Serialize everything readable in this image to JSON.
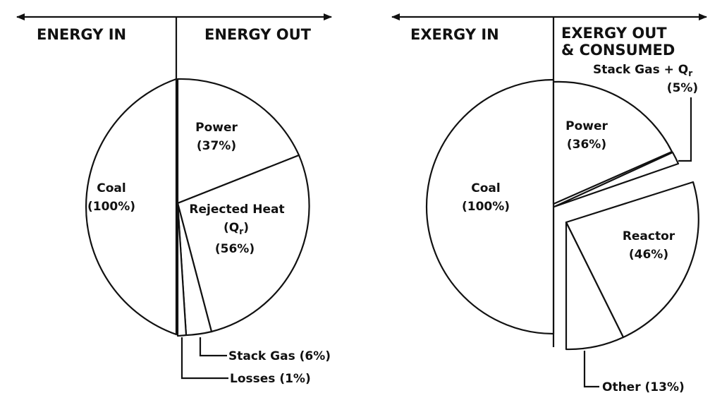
{
  "energy": {
    "header_in": "ENERGY IN",
    "header_out": "ENERGY OUT",
    "coal_label": "Coal",
    "coal_pct": "(100%)",
    "power_label": "Power",
    "power_pct": "(37%)",
    "rejected_label": "Rejected Heat",
    "rejected_sym": "(Q",
    "rejected_sub": "r",
    "rejected_close": ")",
    "rejected_pct": "(56%)",
    "stack_label": "Stack Gas (6%)",
    "losses_label": "Losses (1%)",
    "values": {
      "coal": 100,
      "power": 37,
      "rejected_heat": 56,
      "stack_gas": 6,
      "losses": 1
    }
  },
  "exergy": {
    "header_in": "EXERGY IN",
    "header_out_1": "EXERGY OUT",
    "header_out_2": "& CONSUMED",
    "coal_label": "Coal",
    "coal_pct": "(100%)",
    "power_label": "Power",
    "power_pct": "(36%)",
    "stack_label": "Stack Gas + Q",
    "stack_sub": "r",
    "stack_pct": "(5%)",
    "reactor_label": "Reactor",
    "reactor_pct": "(46%)",
    "other_label": "Other (13%)",
    "values": {
      "coal": 100,
      "power": 36,
      "stack_gas_qr": 5,
      "reactor": 46,
      "other": 13
    }
  }
}
